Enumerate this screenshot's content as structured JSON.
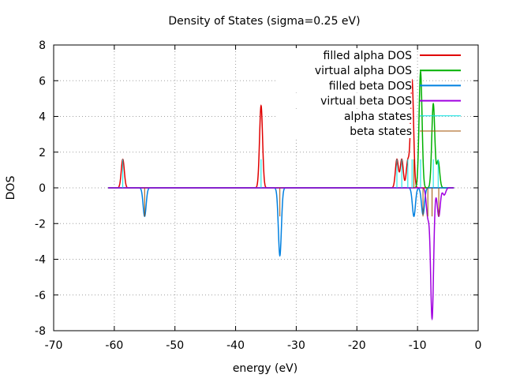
{
  "chart_data": {
    "type": "line",
    "title": "Density of States (sigma=0.25 eV)",
    "xlabel": "energy (eV)",
    "ylabel": "DOS",
    "xlim": [
      -70,
      0
    ],
    "ylim": [
      -8,
      8
    ],
    "xticks": [
      -70,
      -60,
      -50,
      -40,
      -30,
      -20,
      -10,
      0
    ],
    "yticks": [
      -8,
      -6,
      -4,
      -2,
      0,
      2,
      4,
      6,
      8
    ],
    "grid": true,
    "legend_position": "top-right",
    "series": [
      {
        "name": "filled alpha DOS",
        "kind": "line",
        "color": "#e00000",
        "data_range": [
          -61,
          -4
        ],
        "peaks": [
          {
            "center": -58.6,
            "height": 1.6,
            "width": 0.25
          },
          {
            "center": -35.8,
            "height": 4.6,
            "width": 0.25
          },
          {
            "center": -13.4,
            "height": 1.6,
            "width": 0.25
          },
          {
            "center": -12.6,
            "height": 1.6,
            "width": 0.25
          },
          {
            "center": -11.6,
            "height": 1.5,
            "width": 0.25
          },
          {
            "center": -10.9,
            "height": 6.0,
            "width": 0.25
          }
        ]
      },
      {
        "name": "virtual alpha DOS",
        "kind": "line",
        "color": "#00b000",
        "data_range": [
          -61,
          -4
        ],
        "peaks": [
          {
            "center": -9.5,
            "height": 6.5,
            "width": 0.25
          },
          {
            "center": -7.4,
            "height": 4.7,
            "width": 0.25
          },
          {
            "center": -6.6,
            "height": 1.5,
            "width": 0.25
          }
        ]
      },
      {
        "name": "filled beta DOS",
        "kind": "line",
        "color": "#0080e0",
        "data_range": [
          -61,
          -4
        ],
        "peaks": [
          {
            "center": -55.0,
            "height": -1.6,
            "width": 0.25
          },
          {
            "center": -32.7,
            "height": -3.8,
            "width": 0.25
          },
          {
            "center": -10.6,
            "height": -1.6,
            "width": 0.25
          },
          {
            "center": -9.1,
            "height": -1.5,
            "width": 0.25
          }
        ]
      },
      {
        "name": "virtual beta DOS",
        "kind": "line",
        "color": "#a000e0",
        "data_range": [
          -61,
          -4
        ],
        "peaks": [
          {
            "center": -8.3,
            "height": -1.6,
            "width": 0.25
          },
          {
            "center": -7.6,
            "height": -7.3,
            "width": 0.25
          },
          {
            "center": -6.5,
            "height": -1.6,
            "width": 0.25
          },
          {
            "center": -5.6,
            "height": -0.4,
            "width": 0.25
          }
        ]
      },
      {
        "name": "alpha states",
        "kind": "impulse",
        "color": "#00e0e0",
        "x": [
          -58.6,
          -35.8,
          -13.4,
          -12.6,
          -11.6,
          -10.9,
          -9.5,
          -7.4,
          -6.6
        ],
        "y": [
          1.6,
          1.6,
          1.6,
          1.6,
          1.6,
          1.6,
          1.6,
          1.6,
          1.6
        ]
      },
      {
        "name": "beta states",
        "kind": "impulse",
        "color": "#a05000",
        "x": [
          -55.0,
          -32.7,
          -10.6,
          -9.1,
          -8.3,
          -7.6,
          -6.5
        ],
        "y": [
          -1.6,
          -1.6,
          1.6,
          -1.6,
          -1.6,
          -1.6,
          -1.6
        ]
      }
    ]
  }
}
